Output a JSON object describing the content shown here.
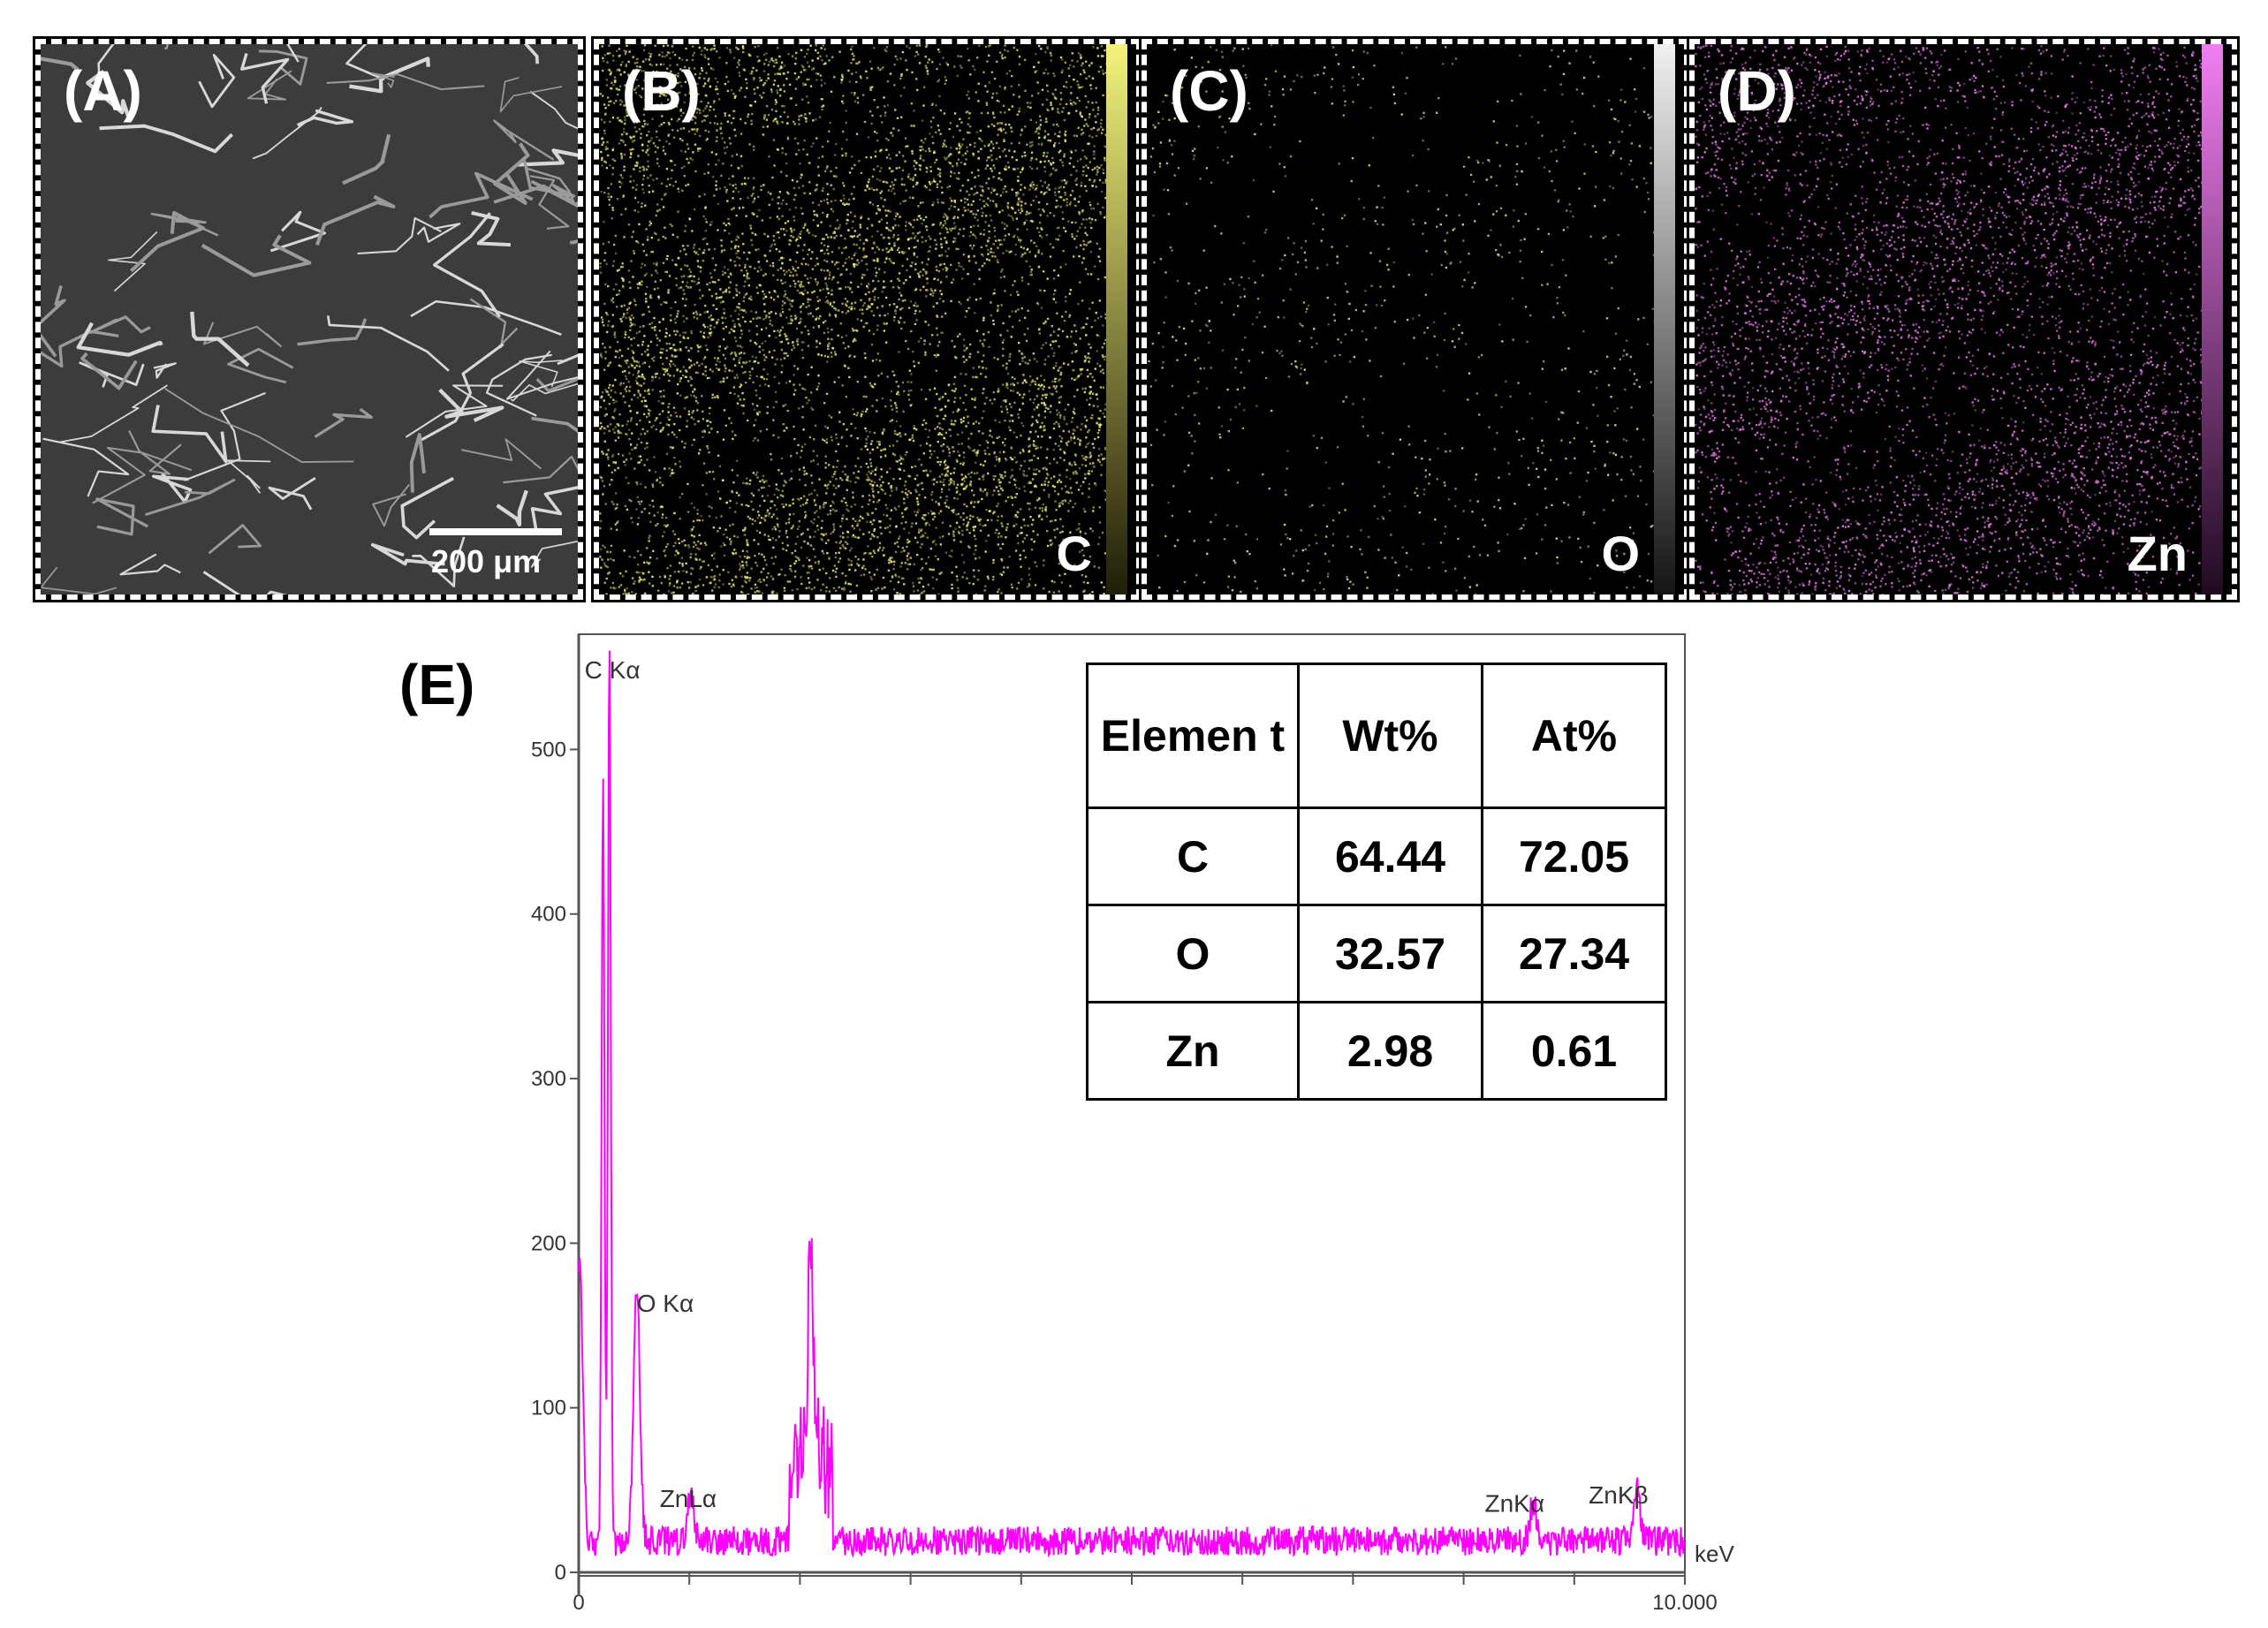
{
  "panels": [
    {
      "label": "(A)",
      "scale_bar": "200 μm"
    },
    {
      "label": "(B)",
      "element": "C",
      "color": "#f2f27a"
    },
    {
      "label": "(C)",
      "element": "O",
      "color": "#f0f0f0"
    },
    {
      "label": "(D)",
      "element": "Zn",
      "color": "#f07ef0"
    }
  ],
  "panel_e_label": "(E)",
  "table": {
    "headers": [
      "Elemen t",
      "Wt%",
      "At%"
    ],
    "rows": [
      {
        "element": "C",
        "wt": "64.44",
        "at": "72.05"
      },
      {
        "element": "O",
        "wt": "32.57",
        "at": "27.34"
      },
      {
        "element": "Zn",
        "wt": "2.98",
        "at": "0.61"
      }
    ]
  },
  "chart_data": {
    "type": "line",
    "title": "",
    "xlabel": "keV",
    "ylabel": "",
    "xlim": [
      0,
      10
    ],
    "ylim": [
      0,
      570
    ],
    "color": "#ff00ff",
    "x_tick_labels": [
      "0",
      "10.000"
    ],
    "y_ticks": [
      0,
      100,
      200,
      300,
      400,
      500
    ],
    "peaks": [
      {
        "label": "C Kα",
        "x": 0.277,
        "y": 540
      },
      {
        "label": "O Kα",
        "x": 0.525,
        "y": 155
      },
      {
        "label": "ZnLα",
        "x": 1.012,
        "y": 28
      },
      {
        "label": "ZnKα",
        "x": 8.63,
        "y": 25
      },
      {
        "label": "ZnKβ",
        "x": 9.57,
        "y": 30
      }
    ],
    "features": [
      {
        "x": 2.1,
        "y": 115
      },
      {
        "x": 0.01,
        "y": 165
      },
      {
        "x": 0.22,
        "y": 460
      }
    ]
  }
}
